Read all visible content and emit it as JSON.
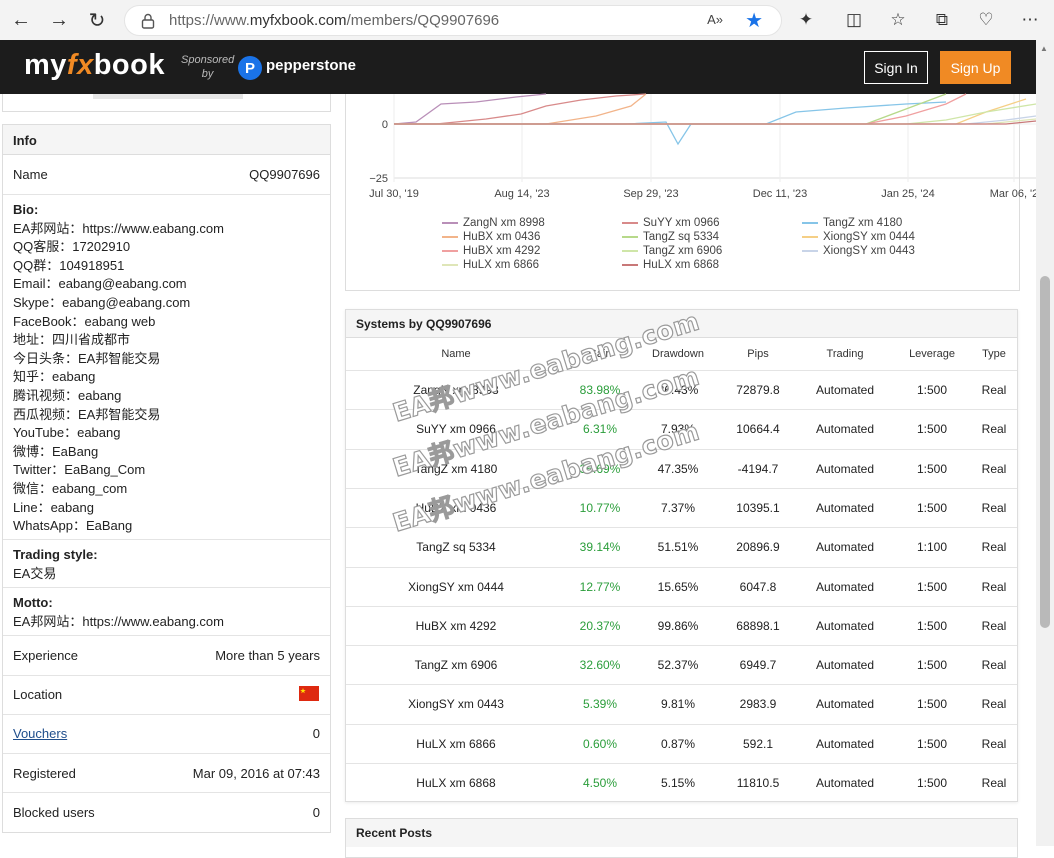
{
  "browser": {
    "url_prefix": "https://www.",
    "url_domain": "myfxbook.com",
    "url_path": "/members/QQ9907696",
    "read_aloud": "A»",
    "icons": [
      "back-icon",
      "forward-icon",
      "refresh-icon",
      "lock-icon",
      "read-aloud-icon",
      "favorite-star-icon",
      "extensions-icon",
      "split-screen-icon",
      "favorites-icon",
      "collections-icon",
      "health-icon",
      "more-icon"
    ]
  },
  "header": {
    "logo_my": "my",
    "logo_fx": "fx",
    "logo_book": "book",
    "sponsored": "Sponsored",
    "by": "by",
    "sponsor_name": "pepperstone",
    "signin": "Sign In",
    "signup": "Sign Up",
    "accent": "#f08a24"
  },
  "info": {
    "title": "Info",
    "name_label": "Name",
    "name_value": "QQ9907696",
    "bio_label": "Bio:",
    "bio_lines": [
      "EA邦网站：https://www.eabang.com",
      "QQ客服：17202910",
      "QQ群：104918951",
      "Email：eabang@eabang.com",
      "Skype：eabang@eabang.com",
      "FaceBook：eabang web",
      "地址：四川省成都市",
      "今日头条：EA邦智能交易",
      "知乎：eabang",
      "腾讯视频：eabang",
      "西瓜视频：EA邦智能交易",
      "YouTube：eabang",
      "微博：EaBang",
      "Twitter：EaBang_Com",
      "微信：eabang_com",
      "Line：eabang",
      "WhatsApp：EaBang"
    ],
    "trading_style_label": "Trading style:",
    "trading_style_value": "EA交易",
    "motto_label": "Motto:",
    "motto_value": "EA邦网站：https://www.eabang.com",
    "experience_label": "Experience",
    "experience_value": "More than 5 years",
    "location_label": "Location",
    "vouchers_label": "Vouchers",
    "vouchers_value": "0",
    "registered_label": "Registered",
    "registered_value": "Mar 09, 2016 at 07:43",
    "blocked_label": "Blocked users",
    "blocked_value": "0"
  },
  "chart_data": {
    "type": "line",
    "x_ticks": [
      "Jul 30, '19",
      "Aug 14, '23",
      "Sep 29, '23",
      "Dec 11, '23",
      "Jan 25, '24",
      "Mar 06, '2"
    ],
    "y_ticks": [
      "0",
      "−25"
    ],
    "series": [
      {
        "name": "ZangN xm 8998",
        "color": "#b98fb8"
      },
      {
        "name": "SuYY xm 0966",
        "color": "#d88a8a"
      },
      {
        "name": "TangZ xm 4180",
        "color": "#86c5e8"
      },
      {
        "name": "HuBX xm 0436",
        "color": "#f2b48a"
      },
      {
        "name": "TangZ sq 5334",
        "color": "#b7d98a"
      },
      {
        "name": "XiongSY xm 0444",
        "color": "#f5cf86"
      },
      {
        "name": "HuBX xm 4292",
        "color": "#f0a0a0"
      },
      {
        "name": "TangZ xm 6906",
        "color": "#cfe6a8"
      },
      {
        "name": "XiongSY xm 0443",
        "color": "#c8d4e8"
      },
      {
        "name": "HuLX xm 6866",
        "color": "#dfe6b8"
      },
      {
        "name": "HuLX xm 6868",
        "color": "#c87878"
      }
    ]
  },
  "systems": {
    "title": "Systems by QQ9907696",
    "columns": [
      "Name",
      "Gain",
      "Drawdown",
      "Pips",
      "Trading",
      "Leverage",
      "Type"
    ],
    "rows": [
      {
        "name": "ZangN xm 8998",
        "gain": "83.98%",
        "drawdown": "36.43%",
        "pips": "72879.8",
        "trading": "Automated",
        "leverage": "1:500",
        "type": "Real"
      },
      {
        "name": "SuYY xm 0966",
        "gain": "6.31%",
        "drawdown": "7.93%",
        "pips": "10664.4",
        "trading": "Automated",
        "leverage": "1:500",
        "type": "Real"
      },
      {
        "name": "TangZ xm 4180",
        "gain": "35.69%",
        "drawdown": "47.35%",
        "pips": "-4194.7",
        "trading": "Automated",
        "leverage": "1:500",
        "type": "Real"
      },
      {
        "name": "HuBX xm 0436",
        "gain": "10.77%",
        "drawdown": "7.37%",
        "pips": "10395.1",
        "trading": "Automated",
        "leverage": "1:500",
        "type": "Real"
      },
      {
        "name": "TangZ sq 5334",
        "gain": "39.14%",
        "drawdown": "51.51%",
        "pips": "20896.9",
        "trading": "Automated",
        "leverage": "1:100",
        "type": "Real"
      },
      {
        "name": "XiongSY xm 0444",
        "gain": "12.77%",
        "drawdown": "15.65%",
        "pips": "6047.8",
        "trading": "Automated",
        "leverage": "1:500",
        "type": "Real"
      },
      {
        "name": "HuBX xm 4292",
        "gain": "20.37%",
        "drawdown": "99.86%",
        "pips": "68898.1",
        "trading": "Automated",
        "leverage": "1:500",
        "type": "Real"
      },
      {
        "name": "TangZ xm 6906",
        "gain": "32.60%",
        "drawdown": "52.37%",
        "pips": "6949.7",
        "trading": "Automated",
        "leverage": "1:500",
        "type": "Real"
      },
      {
        "name": "XiongSY xm 0443",
        "gain": "5.39%",
        "drawdown": "9.81%",
        "pips": "2983.9",
        "trading": "Automated",
        "leverage": "1:500",
        "type": "Real"
      },
      {
        "name": "HuLX xm 6866",
        "gain": "0.60%",
        "drawdown": "0.87%",
        "pips": "592.1",
        "trading": "Automated",
        "leverage": "1:500",
        "type": "Real"
      },
      {
        "name": "HuLX xm 6868",
        "gain": "4.50%",
        "drawdown": "5.15%",
        "pips": "11810.5",
        "trading": "Automated",
        "leverage": "1:500",
        "type": "Real"
      }
    ]
  },
  "watermark": "EA邦www.eabang.com",
  "recent_posts": {
    "title": "Recent Posts"
  }
}
